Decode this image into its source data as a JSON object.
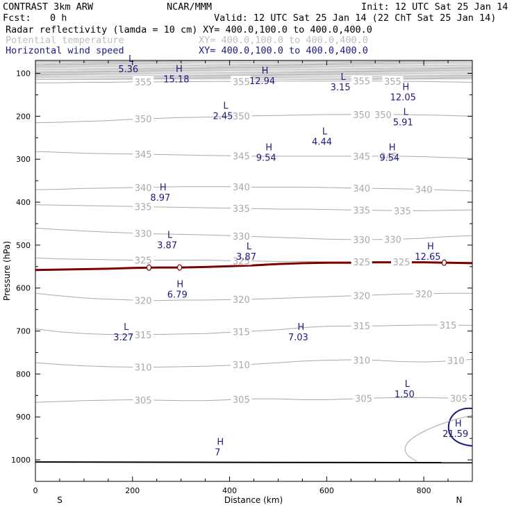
{
  "header": {
    "model": "CONTRAST  3km ARW",
    "center": "NCAR/MMM",
    "init": "Init: 12 UTC Sat 25 Jan 14",
    "fcst_label": "Fcst:",
    "fcst_value": "0 h",
    "valid": "Valid: 12 UTC Sat 25 Jan 14 (22 ChT Sat 25 Jan 14)",
    "fields": [
      {
        "name": "Radar reflectivity (lamda = 10 cm)",
        "xy": "XY= 400.0,100.0 to 400.0,400.0",
        "color": "#000000"
      },
      {
        "name": "Potential temperature",
        "xy": "XY= 400.0,100.0 to 400.0,400.0",
        "color": "#bdbdbd"
      },
      {
        "name": "Horizontal wind speed",
        "xy": "XY= 400.0,100.0 to 400.0,400.0",
        "color": "#1a1a80"
      }
    ]
  },
  "colors": {
    "theta": "#a8a8a8",
    "wind": "#1a1a80",
    "tropo": "#7a0000",
    "frame": "#000000"
  },
  "chart_data": {
    "type": "cross-section",
    "xlabel": "Distance (km)",
    "ylabel": "Pressure (hPa)",
    "xlim": [
      0,
      900
    ],
    "ylim": [
      1050,
      70
    ],
    "x_ticks": [
      "0",
      "200",
      "400",
      "600",
      "800"
    ],
    "y_ticks": [
      "100",
      "200",
      "300",
      "400",
      "500",
      "600",
      "700",
      "800",
      "900",
      "1000"
    ],
    "x_end_labels": {
      "left": "S",
      "right": "N"
    },
    "theta_contours": [
      {
        "value": 305,
        "p": [
          866,
          864,
          862,
          861,
          860,
          861,
          862,
          862,
          860,
          858,
          858,
          860,
          860,
          858,
          856,
          855,
          855,
          856,
          858
        ],
        "labels": [
          {
            "x": 222,
            "text": "305"
          },
          {
            "x": 424,
            "text": "305"
          },
          {
            "x": 676,
            "text": "305"
          },
          {
            "x": 872,
            "text": "305"
          }
        ]
      },
      {
        "value": 310,
        "p": [
          774,
          778,
          781,
          783,
          784,
          784,
          783,
          782,
          780,
          777,
          774,
          770,
          768,
          767,
          768,
          771,
          772,
          770,
          766
        ],
        "labels": [
          {
            "x": 222,
            "text": "310"
          },
          {
            "x": 424,
            "text": "310"
          },
          {
            "x": 672,
            "text": "310"
          },
          {
            "x": 866,
            "text": "310"
          }
        ]
      },
      {
        "value": 315,
        "p": [
          695,
          702,
          706,
          708,
          709,
          708,
          707,
          706,
          703,
          700,
          697,
          692,
          689,
          688,
          688,
          687,
          686,
          686,
          687
        ],
        "labels": [
          {
            "x": 222,
            "text": "315"
          },
          {
            "x": 424,
            "text": "315"
          },
          {
            "x": 672,
            "text": "315"
          },
          {
            "x": 850,
            "text": "315"
          }
        ]
      },
      {
        "value": 320,
        "p": [
          612,
          618,
          623,
          626,
          628,
          629,
          628,
          628,
          627,
          626,
          624,
          622,
          620,
          618,
          616,
          614,
          613,
          612,
          612
        ],
        "labels": [
          {
            "x": 222,
            "text": "320"
          },
          {
            "x": 424,
            "text": "320"
          },
          {
            "x": 672,
            "text": "320"
          },
          {
            "x": 800,
            "text": "320"
          }
        ]
      },
      {
        "value": 325,
        "p": [
          530,
          532,
          533,
          534,
          535,
          535,
          535,
          535,
          536,
          537,
          538,
          538,
          539,
          539,
          539,
          539,
          540,
          540,
          540
        ],
        "labels": [
          {
            "x": 222,
            "text": "325"
          },
          {
            "x": 424,
            "text": "325"
          },
          {
            "x": 672,
            "text": "325"
          },
          {
            "x": 754,
            "text": "325"
          }
        ]
      },
      {
        "value": 330,
        "p": [
          460,
          464,
          467,
          470,
          472,
          474,
          475,
          476,
          478,
          480,
          482,
          484,
          486,
          487,
          487,
          486,
          484,
          480,
          478
        ],
        "labels": [
          {
            "x": 222,
            "text": "330"
          },
          {
            "x": 424,
            "text": "330"
          },
          {
            "x": 672,
            "text": "330"
          },
          {
            "x": 736,
            "text": "330"
          }
        ]
      },
      {
        "value": 335,
        "p": [
          406,
          407,
          408,
          409,
          410,
          411,
          412,
          413,
          414,
          415,
          416,
          416,
          417,
          418,
          419,
          420,
          420,
          419,
          418
        ],
        "labels": [
          {
            "x": 222,
            "text": "335"
          },
          {
            "x": 424,
            "text": "335"
          },
          {
            "x": 672,
            "text": "335"
          },
          {
            "x": 756,
            "text": "335"
          }
        ]
      },
      {
        "value": 340,
        "p": [
          371,
          370,
          368,
          367,
          366,
          365,
          364,
          364,
          364,
          365,
          365,
          365,
          366,
          367,
          368,
          369,
          370,
          372,
          374
        ],
        "labels": [
          {
            "x": 222,
            "text": "340"
          },
          {
            "x": 424,
            "text": "340"
          },
          {
            "x": 672,
            "text": "340"
          },
          {
            "x": 800,
            "text": "340"
          }
        ]
      },
      {
        "value": 345,
        "p": [
          282,
          284,
          286,
          287,
          288,
          289,
          290,
          291,
          292,
          293,
          293,
          293,
          293,
          293,
          293,
          293,
          294,
          296,
          298
        ],
        "labels": [
          {
            "x": 222,
            "text": "345"
          },
          {
            "x": 424,
            "text": "345"
          },
          {
            "x": 672,
            "text": "345"
          },
          {
            "x": 728,
            "text": "345"
          }
        ]
      },
      {
        "value": 350,
        "p": [
          215,
          214,
          212,
          210,
          207,
          205,
          203,
          202,
          200,
          199,
          198,
          197,
          196,
          196,
          196,
          196,
          197,
          198,
          200
        ],
        "labels": [
          {
            "x": 222,
            "text": "350"
          },
          {
            "x": 424,
            "text": "350"
          },
          {
            "x": 672,
            "text": "350"
          },
          {
            "x": 716,
            "text": "350"
          }
        ]
      },
      {
        "value": 355,
        "p": [
          122,
          122,
          121,
          121,
          120,
          120,
          120,
          119,
          119,
          119,
          118,
          118,
          118,
          118,
          118,
          119,
          119,
          120,
          121
        ],
        "labels": [
          {
            "x": 222,
            "text": "355"
          },
          {
            "x": 424,
            "text": "355"
          },
          {
            "x": 672,
            "text": "355"
          },
          {
            "x": 736,
            "text": "355"
          }
        ]
      }
    ],
    "tropo_line": {
      "p": [
        558,
        557,
        556,
        555,
        553,
        552,
        552,
        551,
        549,
        547,
        544,
        542,
        541,
        541,
        540,
        540,
        540,
        541,
        542
      ],
      "markers_x": [
        234,
        297,
        676,
        842
      ]
    },
    "wind_extrema": [
      {
        "type": "L",
        "value": "5.36",
        "x": 197,
        "p": 86
      },
      {
        "type": "H",
        "value": "15.18",
        "x": 296,
        "p": 110
      },
      {
        "type": "H",
        "value": "12.94",
        "x": 473,
        "p": 114
      },
      {
        "type": "L",
        "value": "3.15",
        "x": 634,
        "p": 128
      },
      {
        "type": "H",
        "value": "12.05",
        "x": 763,
        "p": 152
      },
      {
        "type": "L",
        "value": "2.45",
        "x": 392,
        "p": 195
      },
      {
        "type": "L",
        "value": "5.91",
        "x": 763,
        "p": 210
      },
      {
        "type": "L",
        "value": "4.44",
        "x": 596,
        "p": 255
      },
      {
        "type": "H",
        "value": "9.54",
        "x": 481,
        "p": 292
      },
      {
        "type": "H",
        "value": "9.54",
        "x": 735,
        "p": 292
      },
      {
        "type": "H",
        "value": "8.97",
        "x": 263,
        "p": 385
      },
      {
        "type": "L",
        "value": "3.87",
        "x": 277,
        "p": 496
      },
      {
        "type": "L",
        "value": "3.87",
        "x": 440,
        "p": 523
      },
      {
        "type": "H",
        "value": "12.65",
        "x": 814,
        "p": 523
      },
      {
        "type": "H",
        "value": "6.79",
        "x": 298,
        "p": 611
      },
      {
        "type": "L",
        "value": "3.27",
        "x": 187,
        "p": 710
      },
      {
        "type": "H",
        "value": "7.03",
        "x": 547,
        "p": 710
      },
      {
        "type": "L",
        "value": "1.50",
        "x": 766,
        "p": 843
      },
      {
        "type": "H",
        "value": "21.59",
        "x": 871,
        "p": 935
      },
      {
        "type": "H",
        "value": "7",
        "x": 381,
        "p": 978
      }
    ],
    "surface_p": 1005
  }
}
